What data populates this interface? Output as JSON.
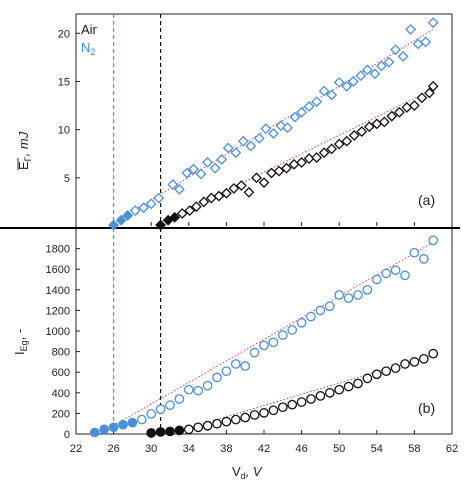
{
  "chart_data": [
    {
      "type": "scatter",
      "panel_label": "(a)",
      "ylabel_main": "E",
      "ylabel_sub": "Γ",
      "ylabel_unit": ", mJ",
      "ylim": [
        0,
        22
      ],
      "yticks": [
        5,
        10,
        15,
        20
      ],
      "legend": [
        {
          "label": "Air",
          "color": "#1a1a1a"
        },
        {
          "label": "N",
          "sub": "2",
          "color": "#2f8fe0"
        }
      ],
      "thresholds": [
        {
          "x": 26,
          "color": "#5b8fd6"
        },
        {
          "x": 31,
          "color": "#111111"
        }
      ],
      "series": [
        {
          "name": "N2",
          "color": "#4a90d9",
          "filled": {
            "x": [
              26,
              26.8,
              27.5
            ],
            "y": [
              0.1,
              0.6,
              1.1
            ]
          },
          "open": {
            "x": [
              28.3,
              29.2,
              30,
              30.8,
              32.3,
              33,
              33.8,
              34.5,
              35.3,
              36,
              36.8,
              37.5,
              38.2,
              39,
              39.8,
              40.6,
              41.5,
              42.2,
              43,
              43.8,
              44.5,
              45.3,
              46,
              46.8,
              47.6,
              48.4,
              49.2,
              50,
              50.8,
              51.5,
              52.3,
              53,
              53.8,
              54.5,
              55.3,
              56,
              56.8,
              57.6,
              58.4,
              59.2,
              60
            ],
            "y": [
              1.6,
              1.9,
              2.3,
              2.9,
              4.3,
              3.8,
              5.5,
              5.9,
              5.4,
              6.6,
              6.0,
              6.9,
              8.1,
              7.6,
              8.8,
              8.3,
              9.1,
              10.1,
              9.6,
              10.4,
              10.2,
              11.3,
              11.8,
              12.4,
              12.9,
              14.0,
              13.6,
              14.9,
              14.5,
              15.0,
              15.6,
              16.2,
              15.8,
              16.6,
              17.0,
              18.3,
              17.6,
              20.4,
              18.9,
              19.1,
              21.1
            ]
          },
          "fit": {
            "x": [
              27,
              60
            ],
            "y": [
              0.95,
              20.4
            ]
          }
        },
        {
          "name": "Air",
          "color": "#111111",
          "filled": {
            "x": [
              31,
              31.8,
              32.5
            ],
            "y": [
              0.1,
              0.6,
              0.9
            ]
          },
          "open": {
            "x": [
              33.3,
              34.1,
              34.8,
              35.6,
              36.4,
              37.2,
              38,
              38.8,
              39.6,
              40.4,
              41.2,
              42,
              42.8,
              43.6,
              44.4,
              45.2,
              46,
              46.8,
              47.6,
              48.4,
              49.2,
              50,
              50.8,
              51.6,
              52.4,
              53.2,
              54,
              54.8,
              55.6,
              56.4,
              57.2,
              58,
              58.8,
              59.6,
              60
            ],
            "y": [
              1.3,
              1.6,
              2.0,
              2.5,
              2.9,
              3.1,
              3.4,
              3.9,
              4.2,
              3.5,
              5.0,
              4.5,
              5.5,
              5.7,
              6.0,
              6.4,
              6.6,
              7.0,
              7.1,
              7.6,
              8.0,
              8.5,
              8.8,
              9.4,
              9.8,
              10.3,
              10.6,
              10.8,
              11.4,
              11.8,
              12.3,
              12.5,
              13.3,
              13.8,
              14.5
            ]
          },
          "fit": {
            "x": [
              32,
              60
            ],
            "y": [
              0.8,
              14.2
            ]
          }
        }
      ]
    },
    {
      "type": "scatter",
      "panel_label": "(b)",
      "ylabel_main": "I",
      "ylabel_sub": "Eg",
      "ylabel_unit": ", -",
      "xlabel_main": "V",
      "xlabel_sub": "d",
      "xlabel_unit": ", V",
      "xlim": [
        22,
        62
      ],
      "xticks": [
        22,
        26,
        30,
        34,
        38,
        42,
        46,
        50,
        54,
        58,
        62
      ],
      "ylim": [
        0,
        2000
      ],
      "yticks": [
        0,
        200,
        400,
        600,
        800,
        1000,
        1200,
        1400,
        1600,
        1800
      ],
      "thresholds": [
        {
          "x": 26,
          "color": "#5b8fd6"
        },
        {
          "x": 31,
          "color": "#111111"
        }
      ],
      "series": [
        {
          "name": "N2",
          "color": "#4a90d9",
          "filled": {
            "x": [
              24,
              25,
              26,
              27,
              28
            ],
            "y": [
              15,
              45,
              65,
              90,
              110
            ]
          },
          "open": {
            "x": [
              29,
              30,
              31,
              32,
              33,
              34,
              35,
              36,
              37,
              38,
              39,
              40,
              41,
              42,
              43,
              44,
              45,
              46,
              47,
              48,
              49,
              50,
              51,
              52,
              53,
              54,
              55,
              56,
              57,
              58,
              59,
              60
            ],
            "y": [
              140,
              195,
              240,
              280,
              340,
              430,
              420,
              470,
              550,
              610,
              680,
              660,
              790,
              860,
              890,
              960,
              1010,
              1080,
              1140,
              1200,
              1240,
              1350,
              1320,
              1350,
              1400,
              1500,
              1560,
              1590,
              1540,
              1760,
              1700,
              1880
            ]
          },
          "fit": {
            "x": [
              25,
              60
            ],
            "y": [
              30,
              1860
            ]
          }
        },
        {
          "name": "Air",
          "color": "#111111",
          "filled": {
            "x": [
              30,
              31,
              32,
              33
            ],
            "y": [
              10,
              20,
              25,
              35
            ]
          },
          "open": {
            "x": [
              34,
              35,
              36,
              37,
              38,
              39,
              40,
              41,
              42,
              43,
              44,
              45,
              46,
              47,
              48,
              49,
              50,
              51,
              52,
              53,
              54,
              55,
              56,
              57,
              58,
              59,
              60
            ],
            "y": [
              45,
              65,
              80,
              100,
              120,
              140,
              160,
              185,
              205,
              230,
              260,
              285,
              310,
              340,
              370,
              400,
              430,
              460,
              490,
              540,
              580,
              610,
              640,
              680,
              700,
              730,
              780
            ]
          },
          "fit": {
            "x": [
              33,
              60
            ],
            "y": [
              30,
              770
            ]
          }
        }
      ]
    }
  ]
}
